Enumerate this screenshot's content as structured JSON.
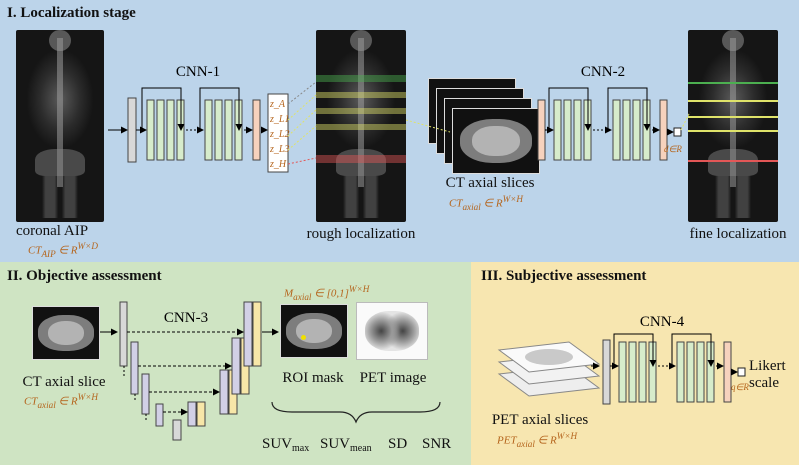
{
  "sections": {
    "localization": {
      "title": "I. Localization stage",
      "bg_color": "#bcd4ea",
      "input_label": "coronal AIP",
      "input_math": "CT_AIP ∈ R^(W×D)",
      "cnn1_label": "CNN-1",
      "outputs": [
        "z_A",
        "z_L1",
        "z_L2",
        "z_L3",
        "z_H"
      ],
      "rough_label": "rough localization",
      "ct_slices_label": "CT axial slices",
      "ct_slices_math": "CT_axial ∈ R^(W×H)",
      "cnn2_label": "CNN-2",
      "d_label": "d∈R",
      "fine_label": "fine localization"
    },
    "objective": {
      "title": "II. Objective assessment",
      "bg_color": "#cfe4c3",
      "input_label": "CT axial slice",
      "input_math": "CT_axial ∈ R^(W×H)",
      "cnn3_label": "CNN-3",
      "mask_math": "M_axial ∈ [0,1]^(W×H)",
      "roi_label": "ROI mask",
      "pet_label": "PET image",
      "metrics": [
        "SUVmax",
        "SUVmean",
        "SD",
        "SNR"
      ]
    },
    "subjective": {
      "title": "III. Subjective assessment",
      "bg_color": "#f7e6b0",
      "pet_slices_label": "PET axial slices",
      "pet_slices_math": "PET_axial ∈ R^(W×H)",
      "cnn4_label": "CNN-4",
      "q_label": "q∈R",
      "likert_label": "Likert scale"
    }
  },
  "colors": {
    "layer_gray": "#d8d8d8",
    "layer_green": "#d7eccb",
    "layer_peach": "#f6d2bd",
    "layer_yellow": "#f7e6a8",
    "layer_purple": "#d2d0e6",
    "band_green": "#4caf50",
    "band_yellow": "#dfe36a",
    "band_red": "#e35757",
    "math_orange": "#b5651d"
  }
}
